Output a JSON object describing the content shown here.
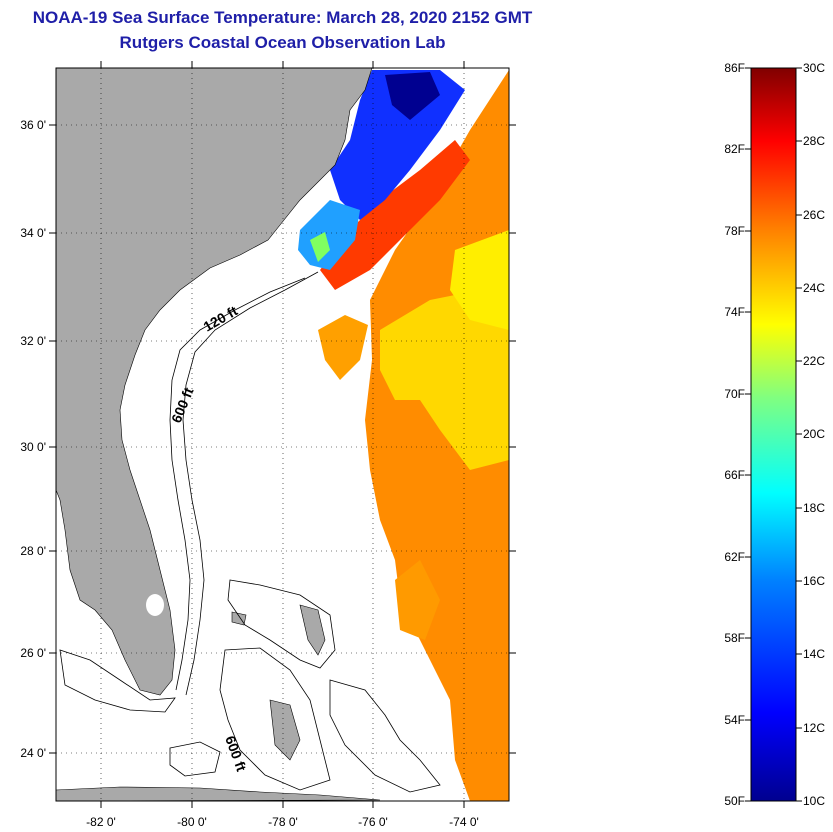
{
  "title_line1": "NOAA-19 Sea Surface Temperature:  March 28, 2020 2152 GMT",
  "title_line2": "Rutgers Coastal Ocean Observation Lab",
  "map": {
    "lon_range": [
      -83,
      -73
    ],
    "lat_range": [
      23,
      37
    ],
    "lon_labels": [
      "-82 0'",
      "-80 0'",
      "-78 0'",
      "-76 0'",
      "-74 0'"
    ],
    "lat_labels": [
      "36 0'",
      "34 0'",
      "32 0'",
      "30 0'",
      "28 0'",
      "26 0'",
      "24 0'"
    ],
    "contour_labels": [
      "120 ft",
      "600 ft",
      "600 ft"
    ],
    "land_color": "#a9a9a9",
    "grid": true
  },
  "colorbar": {
    "fahrenheit_labels": [
      "86F",
      "82F",
      "78F",
      "74F",
      "70F",
      "66F",
      "62F",
      "58F",
      "54F",
      "50F"
    ],
    "celsius_labels": [
      "30C",
      "28C",
      "26C",
      "24C",
      "22C",
      "20C",
      "18C",
      "16C",
      "14C",
      "12C",
      "10C"
    ],
    "range_c": [
      10,
      30
    ],
    "colors": [
      "#00008f",
      "#0000ff",
      "#0080ff",
      "#00ffff",
      "#80ff80",
      "#ffff00",
      "#ff8000",
      "#ff0000",
      "#800000"
    ]
  }
}
